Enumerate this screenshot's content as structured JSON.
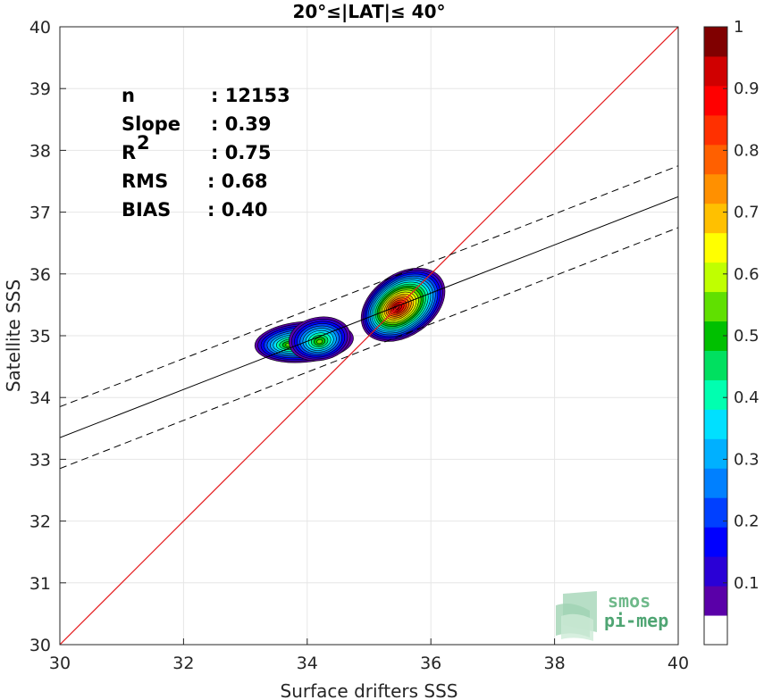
{
  "chart_data": {
    "type": "scatter",
    "title": "20°≤|LAT|≤ 40°",
    "xlabel": "Surface drifters SSS",
    "ylabel": "Satellite SSS",
    "xlim": [
      30,
      40
    ],
    "ylim": [
      30,
      40
    ],
    "xticks": [
      30,
      32,
      34,
      36,
      38,
      40
    ],
    "yticks": [
      30,
      31,
      32,
      33,
      34,
      35,
      36,
      37,
      38,
      39,
      40
    ],
    "grid": true,
    "stats": [
      {
        "label": "n",
        "value": ": 12153"
      },
      {
        "label": "Slope",
        "value": ": 0.39"
      },
      {
        "label": "R",
        "sup": "2",
        "value": ": 0.75"
      },
      {
        "label": "RMS",
        "value": ": 0.68"
      },
      {
        "label": "BIAS",
        "value": ": 0.40"
      }
    ],
    "identity_line": {
      "color": "#e41a1c"
    },
    "fit_line": {
      "slope": 0.39,
      "intercept": 21.65,
      "band": 0.5
    },
    "density_blobs": [
      {
        "cx": 35.55,
        "cy": 35.5,
        "rx": 0.75,
        "ry": 0.5,
        "angle": 35,
        "peak": 1.0,
        "peak_x": 35.45,
        "peak_y": 35.45
      },
      {
        "cx": 33.95,
        "cy": 34.9,
        "rx": 0.8,
        "ry": 0.33,
        "angle": 5,
        "peak": 0.55,
        "peak_x": 33.7,
        "peak_y": 34.85
      },
      {
        "cx": 34.2,
        "cy": 34.95,
        "rx": 0.5,
        "ry": 0.35,
        "angle": 10,
        "peak": 0.55,
        "peak_x": 34.2,
        "peak_y": 34.9
      }
    ],
    "colorbar": {
      "ticks": [
        "0.1",
        "0.2",
        "0.3",
        "0.4",
        "0.5",
        "0.6",
        "0.7",
        "0.8",
        "0.9",
        "1"
      ],
      "tick_values": [
        0.1,
        0.2,
        0.3,
        0.4,
        0.5,
        0.6,
        0.7,
        0.8,
        0.9,
        1.0
      ],
      "min": 0.0,
      "max": 1.0,
      "colors": [
        "#ffffff",
        "#5a00a8",
        "#2a00d6",
        "#0000ff",
        "#0040ff",
        "#0080ff",
        "#00b0ff",
        "#00e0ff",
        "#00ffb0",
        "#00e060",
        "#00c000",
        "#60e000",
        "#c0ff00",
        "#ffff00",
        "#ffc000",
        "#ff9000",
        "#ff6000",
        "#ff3000",
        "#ff0000",
        "#d00000",
        "#800000"
      ]
    }
  },
  "logo": {
    "line1": "smos",
    "line2": "pi-mep"
  }
}
